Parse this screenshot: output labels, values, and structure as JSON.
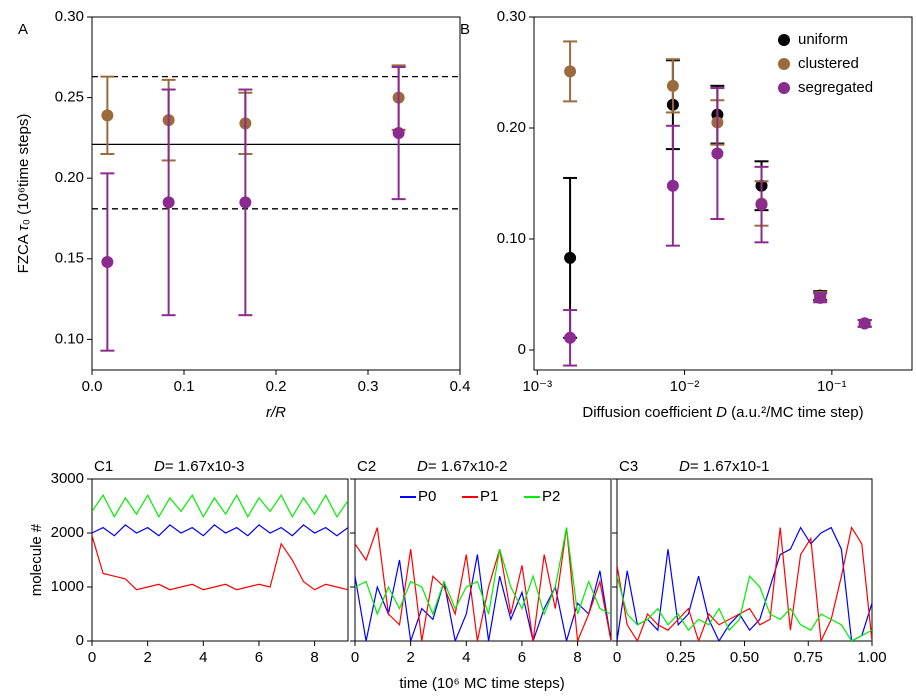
{
  "chart_data": [
    {
      "type": "scatter",
      "panel": "A",
      "xlabel": [
        {
          "text": "r/R",
          "italic": true
        }
      ],
      "ylabel": [
        {
          "text": "FZCA "
        },
        {
          "text": "τ",
          "italic": true
        },
        {
          "text": "₀ (10⁶time steps)"
        }
      ],
      "x": [
        0.0167,
        0.0833,
        0.1667,
        0.3333
      ],
      "series": [
        {
          "color": "#9c6b3d",
          "values": [
            0.239,
            0.236,
            0.234,
            0.25
          ],
          "errors": [
            0.024,
            0.025,
            0.019,
            0.02
          ]
        },
        {
          "color": "#8b2a8f",
          "values": [
            0.148,
            0.185,
            0.185,
            0.228
          ],
          "errors": [
            0.055,
            0.07,
            0.07,
            0.041
          ]
        }
      ],
      "hlines": [
        {
          "value": 0.221,
          "style": "solid"
        },
        {
          "value": 0.263,
          "style": "dashed"
        },
        {
          "value": 0.181,
          "style": "dashed"
        }
      ],
      "xlim": [
        0,
        0.4
      ],
      "xticks": [
        {
          "value": 0,
          "label": "0.0"
        },
        0.1,
        0.2,
        0.3,
        0.4
      ],
      "ylim": [
        0.081,
        0.3
      ],
      "yticks": [
        {
          "value": 0.1,
          "label": "0.10"
        },
        0.15,
        {
          "value": 0.2,
          "label": "0.20"
        },
        0.25,
        {
          "value": 0.3,
          "label": "0.30"
        }
      ]
    },
    {
      "type": "scatter",
      "panel": "B",
      "xlabel": [
        {
          "text": "Diffusion coefficient "
        },
        {
          "text": "D",
          "italic": true
        },
        {
          "text": " (a.u.²/MC time step)"
        }
      ],
      "x": [
        0.00167,
        0.00833,
        0.0167,
        0.0333,
        0.0833,
        0.167
      ],
      "xlog": true,
      "series": [
        {
          "name": "uniform",
          "color": "#000000",
          "values": [
            0.083,
            0.221,
            0.212,
            0.148,
            0.049,
            0.024
          ],
          "errors": [
            0.072,
            0.04,
            0.026,
            0.022,
            0.004,
            0.003
          ]
        },
        {
          "name": "clustered",
          "color": "#9c6b3d",
          "values": [
            0.251,
            0.238,
            0.205,
            0.132,
            0.048,
            0.024
          ],
          "errors": [
            0.027,
            0.024,
            0.02,
            0.02,
            0.004,
            0.003
          ]
        },
        {
          "name": "segregated",
          "color": "#8b2a8f",
          "values": [
            0.011,
            0.148,
            0.177,
            0.131,
            0.047,
            0.024
          ],
          "errors": [
            0.025,
            0.054,
            0.059,
            0.034,
            0.004,
            0.003
          ]
        }
      ],
      "legend": "upper right",
      "xlim": [
        0.00095,
        0.35
      ],
      "xticks": [
        {
          "value": 0.001,
          "label": "10⁻³"
        },
        {
          "value": 0.01,
          "label": "10⁻²"
        },
        {
          "value": 0.1,
          "label": "10⁻¹"
        }
      ],
      "ylim": [
        -0.018,
        0.3
      ],
      "yticks": [
        0,
        {
          "value": 0.1,
          "label": "0.10"
        },
        {
          "value": 0.2,
          "label": "0.20"
        },
        {
          "value": 0.3,
          "label": "0.30"
        }
      ]
    },
    {
      "type": "line",
      "panel": "C1",
      "subtitle": [
        {
          "text": "D",
          "italic": true
        },
        {
          "text": "= 1.67x10-3"
        }
      ],
      "ylabel": [
        {
          "text": "molecule #"
        }
      ],
      "x": [
        0,
        0.4,
        0.8,
        1.2,
        1.6,
        2,
        2.4,
        2.8,
        3.2,
        3.6,
        4,
        4.4,
        4.8,
        5.2,
        5.6,
        6,
        6.4,
        6.8,
        7.2,
        7.6,
        8,
        8.4,
        8.8,
        9.2
      ],
      "series": [
        {
          "color": "#0000ff",
          "values": [
            2000,
            2100,
            1950,
            2150,
            2000,
            2100,
            1950,
            2150,
            2000,
            2100,
            1950,
            2150,
            2000,
            2100,
            1950,
            2150,
            2000,
            2100,
            1950,
            2150,
            2000,
            2100,
            1950,
            2100
          ]
        },
        {
          "color": "#ff0000",
          "values": [
            1950,
            1250,
            1200,
            1150,
            950,
            1000,
            1050,
            950,
            1000,
            1050,
            950,
            1000,
            1050,
            950,
            1000,
            1050,
            1000,
            1800,
            1500,
            1100,
            950,
            1050,
            1000,
            950
          ]
        },
        {
          "color": "#00ee00",
          "values": [
            2400,
            2700,
            2300,
            2650,
            2350,
            2700,
            2300,
            2650,
            2400,
            2700,
            2300,
            2650,
            2350,
            2700,
            2300,
            2650,
            2400,
            2700,
            2300,
            2650,
            2350,
            2700,
            2300,
            2600
          ]
        }
      ],
      "xlim": [
        0,
        9.2
      ],
      "xticks": [
        0,
        2,
        4,
        6,
        8
      ],
      "ylim": [
        0,
        3000
      ],
      "yticks": [
        0,
        1000,
        2000,
        3000
      ]
    },
    {
      "type": "line",
      "panel": "C2",
      "subtitle": [
        {
          "text": "D",
          "italic": true
        },
        {
          "text": "= 1.67x10-2"
        }
      ],
      "xlabel": [
        {
          "text": "time (10⁶ MC time steps)"
        }
      ],
      "x": [
        0,
        0.4,
        0.8,
        1.2,
        1.6,
        2,
        2.4,
        2.8,
        3.2,
        3.6,
        4,
        4.4,
        4.8,
        5.2,
        5.6,
        6,
        6.4,
        6.8,
        7.2,
        7.6,
        8,
        8.4,
        8.8,
        9.2
      ],
      "series": [
        {
          "name": "P0",
          "color": "#0000ff",
          "values": [
            1200,
            0,
            1000,
            500,
            1500,
            0,
            600,
            400,
            1100,
            0,
            500,
            1600,
            0,
            1200,
            400,
            900,
            0,
            600,
            1000,
            0,
            700,
            500,
            1300,
            0
          ]
        },
        {
          "name": "P1",
          "color": "#ff0000",
          "values": [
            1800,
            1500,
            2100,
            500,
            300,
            1700,
            0,
            1200,
            1000,
            500,
            1600,
            0,
            1000,
            1700,
            500,
            1400,
            0,
            1600,
            600,
            2100,
            0,
            500,
            1100,
            0
          ]
        },
        {
          "name": "P2",
          "color": "#00ee00",
          "values": [
            1000,
            1100,
            500,
            1000,
            600,
            1100,
            1000,
            500,
            1100,
            600,
            1000,
            1100,
            500,
            1700,
            1000,
            600,
            1200,
            500,
            1000,
            2100,
            500,
            1100,
            600,
            500
          ]
        }
      ],
      "legend": "top",
      "ytick_labels": false,
      "xlim": [
        0,
        9.2
      ],
      "xticks": [
        0,
        2,
        4,
        6,
        8
      ],
      "ylim": [
        0,
        3000
      ],
      "yticks": [
        0,
        1000,
        2000,
        3000
      ]
    },
    {
      "type": "line",
      "panel": "C3",
      "subtitle": [
        {
          "text": "D",
          "italic": true
        },
        {
          "text": "= 1.67x10-1"
        }
      ],
      "x": [
        0,
        0.04,
        0.08,
        0.12,
        0.16,
        0.2,
        0.24,
        0.28,
        0.32,
        0.36,
        0.4,
        0.44,
        0.48,
        0.52,
        0.56,
        0.6,
        0.64,
        0.68,
        0.72,
        0.76,
        0.8,
        0.84,
        0.88,
        0.92,
        0.96,
        1
      ],
      "series": [
        {
          "color": "#0000ff",
          "values": [
            0,
            1300,
            300,
            400,
            200,
            1700,
            300,
            500,
            1200,
            400,
            0,
            300,
            500,
            200,
            400,
            1000,
            1600,
            1700,
            2100,
            1800,
            2000,
            2100,
            1700,
            0,
            100,
            700
          ]
        },
        {
          "color": "#ff0000",
          "values": [
            1400,
            300,
            0,
            500,
            300,
            200,
            400,
            600,
            0,
            500,
            300,
            400,
            500,
            600,
            300,
            400,
            2100,
            200,
            1600,
            1900,
            0,
            400,
            1200,
            2100,
            1800,
            0
          ]
        },
        {
          "color": "#00ee00",
          "values": [
            1200,
            500,
            300,
            400,
            600,
            300,
            500,
            200,
            400,
            300,
            600,
            200,
            400,
            1200,
            1000,
            500,
            400,
            600,
            300,
            200,
            500,
            400,
            300,
            0,
            100,
            200
          ]
        }
      ],
      "ytick_labels": false,
      "xlim": [
        0,
        1
      ],
      "xticks": [
        0,
        0.25,
        {
          "value": 0.5,
          "label": "0.50"
        },
        0.75,
        {
          "value": 1,
          "label": "1.00"
        }
      ],
      "ylim": [
        0,
        3000
      ],
      "yticks": [
        0,
        1000,
        2000,
        3000
      ]
    }
  ]
}
